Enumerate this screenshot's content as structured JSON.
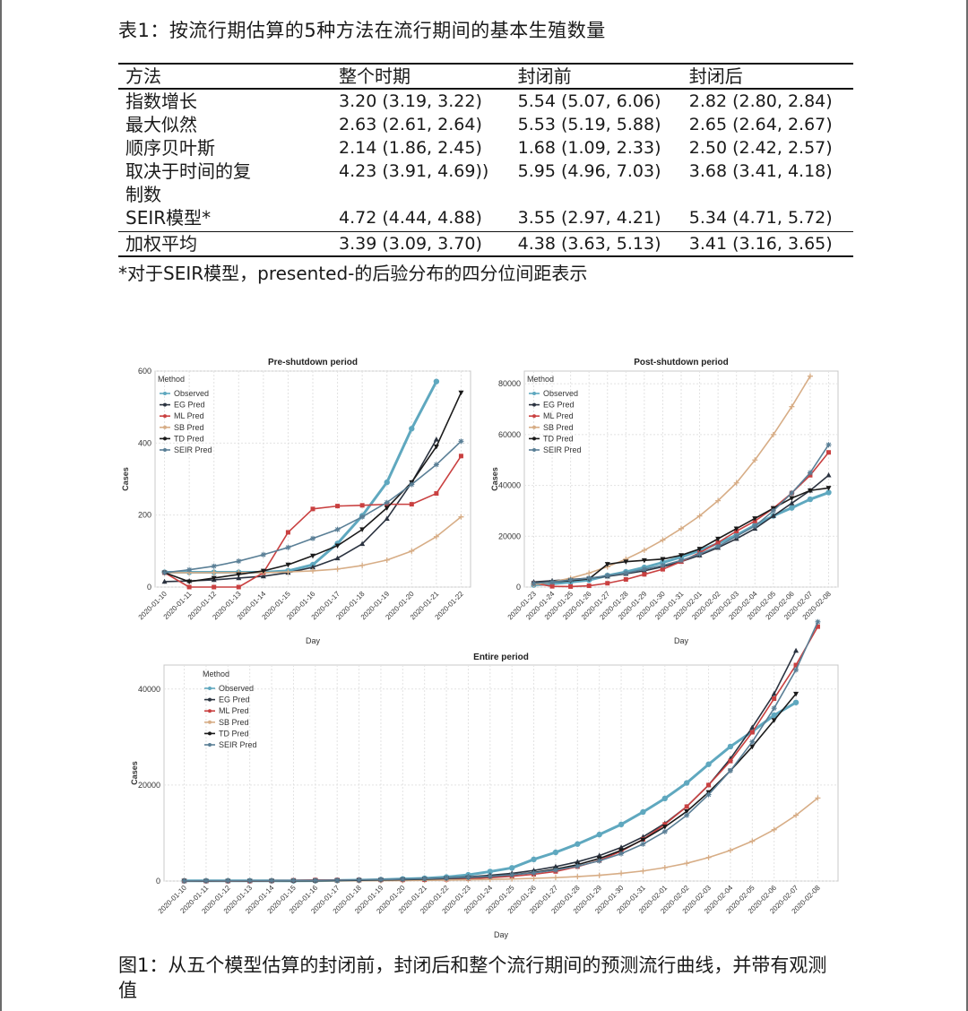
{
  "table": {
    "caption": "表1：按流行期估算的5种方法在流行期间的基本生殖数量",
    "headers": [
      "方法",
      "整个时期",
      "封闭前",
      "封闭后"
    ],
    "rows": [
      {
        "method": "指数增长",
        "entire": "3.20 (3.19, 3.22)",
        "pre": "5.54 (5.07, 6.06)",
        "post": "2.82 (2.80, 2.84)"
      },
      {
        "method": "最大似然",
        "entire": "2.63 (2.61, 2.64)",
        "pre": "5.53 (5.19, 5.88)",
        "post": "2.65 (2.64, 2.67)"
      },
      {
        "method": "顺序贝叶斯",
        "entire": "2.14 (1.86, 2.45)",
        "pre": "1.68 (1.09, 2.33)",
        "post": "2.50 (2.42, 2.57)"
      },
      {
        "method": "取决于时间的复制数",
        "entire": "4.23 (3.91, 4.69))",
        "pre": "5.95 (4.96, 7.03)",
        "post": "3.68 (3.41, 4.18)"
      },
      {
        "method": "SEIR模型*",
        "entire": "4.72 (4.44, 4.88)",
        "pre": "3.55 (2.97, 4.21)",
        "post": "5.34 (4.71, 5.72)"
      }
    ],
    "total_row": {
      "method": "加权平均",
      "entire": "3.39 (3.09, 3.70)",
      "pre": "4.38 (3.63, 5.13)",
      "post": "3.41 (3.16, 3.65)"
    },
    "footnote": "*对于SEIR模型，presented-的后验分布的四分位间距表示"
  },
  "figure_caption": "图1：从五个模型估算的封闭前，封闭后和整个流行期间的预测流行曲线，并带有观测值",
  "colors": {
    "Observed": "#5fa8bf",
    "EG Pred": "#2b3340",
    "ML Pred": "#c94040",
    "SB Pred": "#d7ad86",
    "TD Pred": "#1a1a1a",
    "SEIR Pred": "#5a7f96"
  },
  "chart_data": [
    {
      "type": "line",
      "title": "Pre-shutdown period",
      "xlabel": "Day",
      "ylabel": "Cases",
      "legend_title": "Method",
      "legend_position": "top-left",
      "grid": true,
      "ylim": [
        0,
        600
      ],
      "yticks": [
        0,
        200,
        400,
        600
      ],
      "x": [
        "2020-01-10",
        "2020-01-11",
        "2020-01-12",
        "2020-01-13",
        "2020-01-14",
        "2020-01-15",
        "2020-01-16",
        "2020-01-17",
        "2020-01-18",
        "2020-01-19",
        "2020-01-20",
        "2020-01-21",
        "2020-01-22"
      ],
      "series": [
        {
          "name": "Observed",
          "values": [
            41,
            41,
            41,
            41,
            41,
            45,
            62,
            121,
            198,
            291,
            440,
            571,
            null
          ]
        },
        {
          "name": "EG Pred",
          "values": [
            15,
            17,
            20,
            25,
            30,
            40,
            55,
            80,
            120,
            190,
            290,
            410,
            null
          ]
        },
        {
          "name": "ML Pred",
          "values": [
            40,
            0,
            0,
            0,
            40,
            152,
            217,
            225,
            227,
            230,
            230,
            260,
            364
          ]
        },
        {
          "name": "SB Pred",
          "values": [
            40,
            40,
            40,
            40,
            40,
            42,
            45,
            50,
            60,
            75,
            100,
            140,
            195
          ]
        },
        {
          "name": "TD Pred",
          "values": [
            40,
            15,
            25,
            35,
            45,
            62,
            87,
            115,
            160,
            220,
            291,
            390,
            540
          ]
        },
        {
          "name": "SEIR Pred",
          "values": [
            40,
            48,
            58,
            72,
            90,
            110,
            135,
            160,
            195,
            235,
            285,
            340,
            405
          ]
        }
      ]
    },
    {
      "type": "line",
      "title": "Post-shutdown period",
      "xlabel": "Day",
      "ylabel": "Cases",
      "legend_title": "Method",
      "legend_position": "top-left",
      "grid": true,
      "ylim": [
        0,
        85000
      ],
      "yticks": [
        0,
        20000,
        40000,
        60000,
        80000
      ],
      "x": [
        "2020-01-23",
        "2020-01-24",
        "2020-01-25",
        "2020-01-26",
        "2020-01-27",
        "2020-01-28",
        "2020-01-29",
        "2020-01-30",
        "2020-01-31",
        "2020-02-01",
        "2020-02-02",
        "2020-02-03",
        "2020-02-04",
        "2020-02-05",
        "2020-02-06",
        "2020-02-07",
        "2020-02-08"
      ],
      "series": [
        {
          "name": "Observed",
          "values": [
            830,
            1287,
            1975,
            2744,
            4515,
            5974,
            7711,
            9692,
            11791,
            14380,
            17205,
            20438,
            24324,
            28018,
            31161,
            34546,
            37198
          ]
        },
        {
          "name": "EG Pred",
          "values": [
            2000,
            2500,
            3000,
            3500,
            4200,
            5200,
            6400,
            8000,
            10000,
            12500,
            15500,
            19000,
            23000,
            28000,
            33000,
            38000,
            44000
          ]
        },
        {
          "name": "ML Pred",
          "values": [
            1500,
            300,
            200,
            500,
            1500,
            3000,
            5000,
            7000,
            10000,
            13500,
            17500,
            22000,
            26000,
            31000,
            37000,
            44000,
            53000
          ]
        },
        {
          "name": "SB Pred",
          "values": [
            1000,
            2000,
            3500,
            5500,
            8000,
            11000,
            14500,
            18500,
            23000,
            28000,
            34000,
            41000,
            50000,
            60000,
            71000,
            83000,
            null
          ]
        },
        {
          "name": "TD Pred",
          "values": [
            1500,
            2000,
            2500,
            3200,
            9000,
            10000,
            10500,
            11000,
            12500,
            15000,
            19000,
            23000,
            27000,
            31000,
            35000,
            38000,
            39000
          ]
        },
        {
          "name": "SEIR Pred",
          "values": [
            1500,
            2000,
            2800,
            3500,
            4500,
            5500,
            7000,
            8500,
            10500,
            13000,
            16000,
            20000,
            24000,
            30000,
            37000,
            45000,
            56000
          ]
        }
      ]
    },
    {
      "type": "line",
      "title": "Entire period",
      "xlabel": "Day",
      "ylabel": "Cases",
      "legend_title": "Method",
      "legend_position": "top-left",
      "grid": true,
      "ylim": [
        0,
        45000
      ],
      "yticks": [
        0,
        20000,
        40000
      ],
      "x": [
        "2020-01-10",
        "2020-01-11",
        "2020-01-12",
        "2020-01-13",
        "2020-01-14",
        "2020-01-15",
        "2020-01-16",
        "2020-01-17",
        "2020-01-18",
        "2020-01-19",
        "2020-01-20",
        "2020-01-21",
        "2020-01-22",
        "2020-01-23",
        "2020-01-24",
        "2020-01-25",
        "2020-01-26",
        "2020-01-27",
        "2020-01-28",
        "2020-01-29",
        "2020-01-30",
        "2020-01-31",
        "2020-02-01",
        "2020-02-02",
        "2020-02-03",
        "2020-02-04",
        "2020-02-05",
        "2020-02-06",
        "2020-02-07",
        "2020-02-08"
      ],
      "series": [
        {
          "name": "Observed",
          "values": [
            41,
            41,
            41,
            41,
            41,
            45,
            62,
            121,
            198,
            291,
            440,
            571,
            830,
            1287,
            1975,
            2744,
            4515,
            5974,
            7711,
            9692,
            11791,
            14380,
            17205,
            20438,
            24324,
            28018,
            31161,
            34546,
            37198,
            null
          ]
        },
        {
          "name": "EG Pred",
          "values": [
            20,
            25,
            30,
            40,
            55,
            75,
            100,
            140,
            190,
            260,
            350,
            480,
            650,
            880,
            1200,
            1600,
            2200,
            3000,
            4000,
            5300,
            7000,
            9200,
            12000,
            15500,
            20000,
            25500,
            32000,
            39000,
            48000,
            null
          ]
        },
        {
          "name": "ML Pred",
          "values": [
            40,
            0,
            0,
            0,
            40,
            150,
            220,
            225,
            227,
            230,
            230,
            260,
            360,
            500,
            700,
            1000,
            1400,
            2000,
            3000,
            4300,
            6200,
            8700,
            11800,
            15500,
            20000,
            25000,
            31000,
            38000,
            45000,
            53000
          ]
        },
        {
          "name": "SB Pred",
          "values": [
            40,
            40,
            40,
            40,
            40,
            42,
            45,
            50,
            60,
            75,
            100,
            140,
            195,
            260,
            340,
            440,
            560,
            720,
            920,
            1200,
            1600,
            2100,
            2800,
            3700,
            4900,
            6400,
            8300,
            10700,
            13700,
            17300
          ]
        },
        {
          "name": "TD Pred",
          "values": [
            40,
            20,
            25,
            35,
            45,
            60,
            85,
            115,
            160,
            220,
            290,
            390,
            520,
            700,
            950,
            1300,
            1800,
            2500,
            3400,
            4700,
            6400,
            8600,
            11300,
            14500,
            18500,
            23000,
            28000,
            33500,
            39000,
            null
          ]
        },
        {
          "name": "SEIR Pred",
          "values": [
            40,
            50,
            60,
            75,
            95,
            120,
            150,
            190,
            240,
            300,
            380,
            480,
            610,
            780,
            1000,
            1300,
            1700,
            2300,
            3100,
            4200,
            5700,
            7700,
            10300,
            13700,
            18000,
            23000,
            29000,
            36000,
            44000,
            54000
          ]
        }
      ]
    }
  ]
}
